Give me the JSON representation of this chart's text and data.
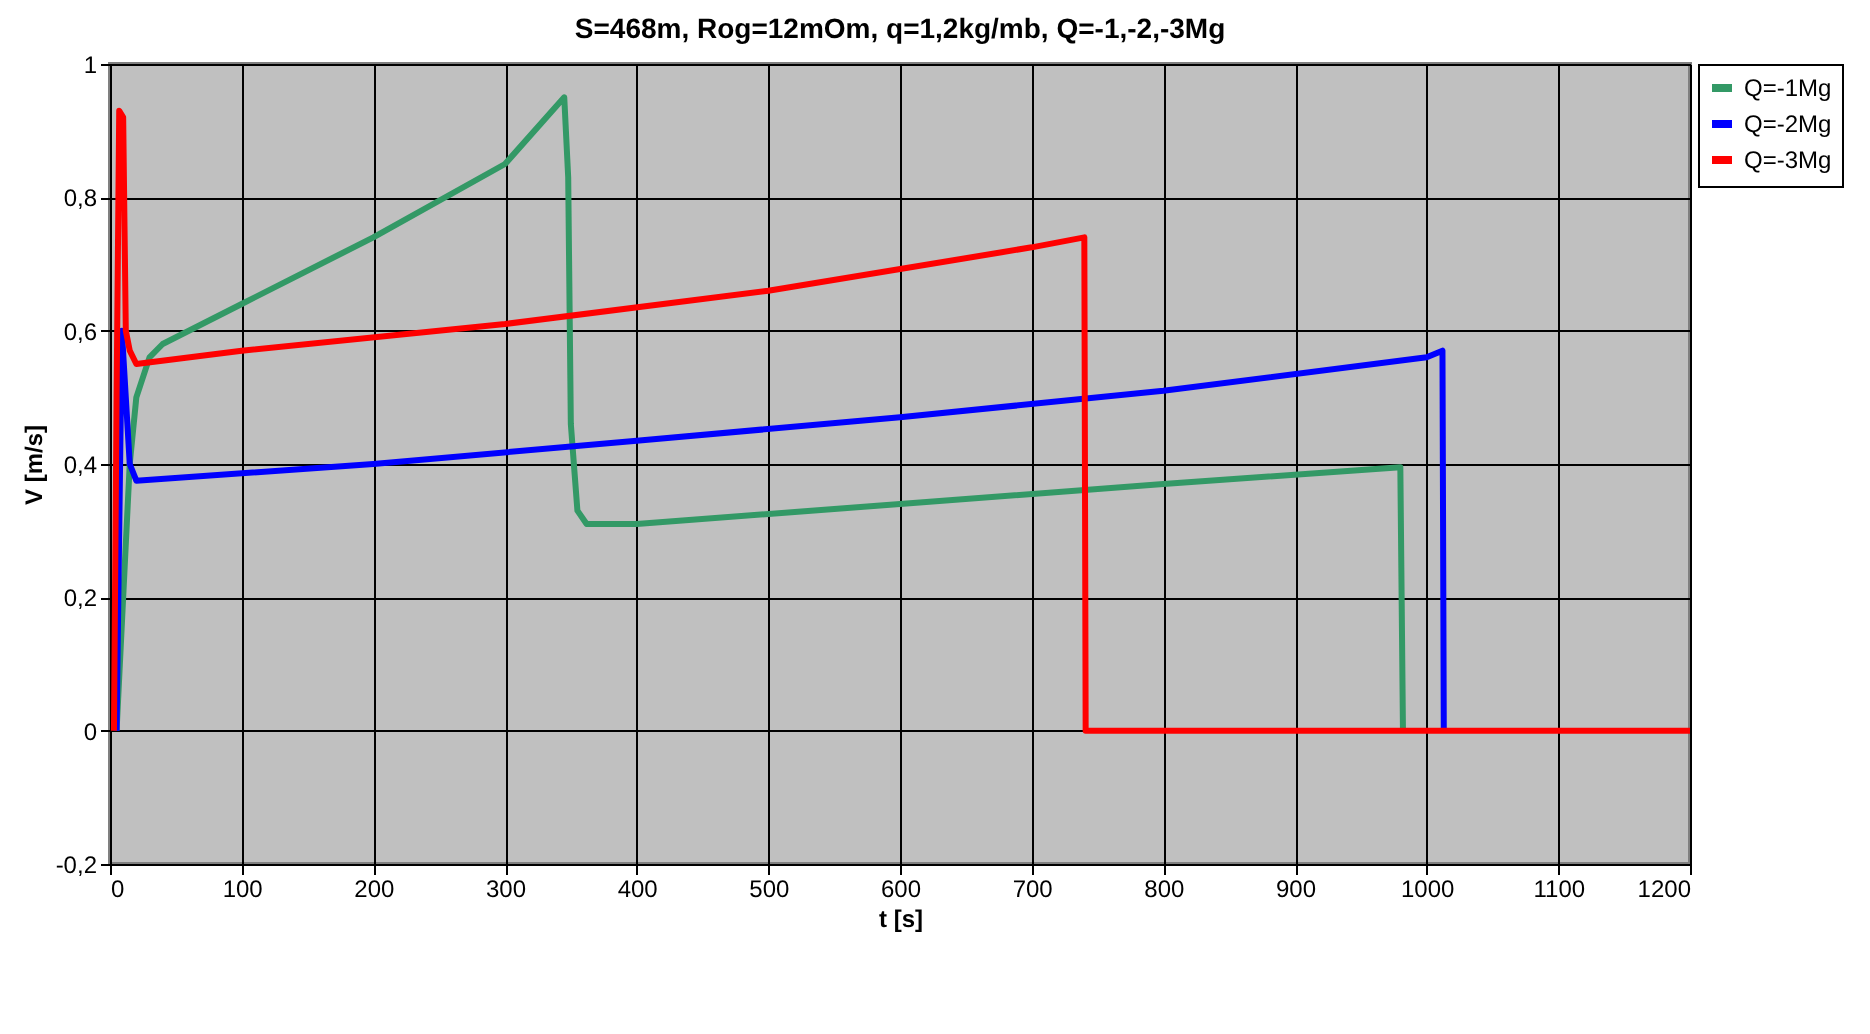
{
  "chart_data": {
    "type": "line",
    "title": "S=468m, Rog=12mOm, q=1,2kg/mb, Q=-1,-2,-3Mg",
    "xlabel": "t [s]",
    "ylabel": "V [m/s]",
    "xlim": [
      0,
      1200
    ],
    "xticks": [
      0,
      100,
      200,
      300,
      400,
      500,
      600,
      700,
      800,
      900,
      1000,
      1100,
      1200
    ],
    "ylim": [
      -0.2,
      1
    ],
    "yticks": [
      {
        "value": -0.2,
        "label": "-0,2"
      },
      0,
      {
        "value": 0.2,
        "label": "0,2"
      },
      {
        "value": 0.4,
        "label": "0,4"
      },
      {
        "value": 0.6,
        "label": "0,6"
      },
      {
        "value": 0.8,
        "label": "0,8"
      },
      1
    ],
    "grid": true,
    "legend": "right",
    "line_style": "solid",
    "marker": "none",
    "series": [
      {
        "name": "Q=-1Mg",
        "color": "#339966",
        "x": [
          5,
          10,
          15,
          20,
          30,
          40,
          100,
          200,
          300,
          345,
          348,
          350,
          355,
          362,
          370,
          400,
          600,
          800,
          980,
          982
        ],
        "values": [
          0,
          0.2,
          0.4,
          0.5,
          0.56,
          0.58,
          0.64,
          0.74,
          0.85,
          0.95,
          0.83,
          0.46,
          0.33,
          0.31,
          0.31,
          0.31,
          0.34,
          0.37,
          0.395,
          0
        ]
      },
      {
        "name": "Q=-2Mg",
        "color": "#0000ff",
        "x": [
          5,
          9,
          12,
          15,
          20,
          200,
          400,
          600,
          800,
          1000,
          1012,
          1013
        ],
        "values": [
          0,
          0.6,
          0.5,
          0.4,
          0.375,
          0.4,
          0.435,
          0.47,
          0.51,
          0.56,
          0.57,
          0
        ]
      },
      {
        "name": "Q=-3Mg",
        "color": "#ff0000",
        "x": [
          3,
          5,
          7,
          10,
          12,
          15,
          20,
          100,
          300,
          500,
          700,
          740,
          741,
          1200
        ],
        "values": [
          0,
          0.5,
          0.93,
          0.92,
          0.6,
          0.57,
          0.55,
          0.57,
          0.61,
          0.66,
          0.725,
          0.74,
          0,
          0
        ]
      }
    ]
  }
}
